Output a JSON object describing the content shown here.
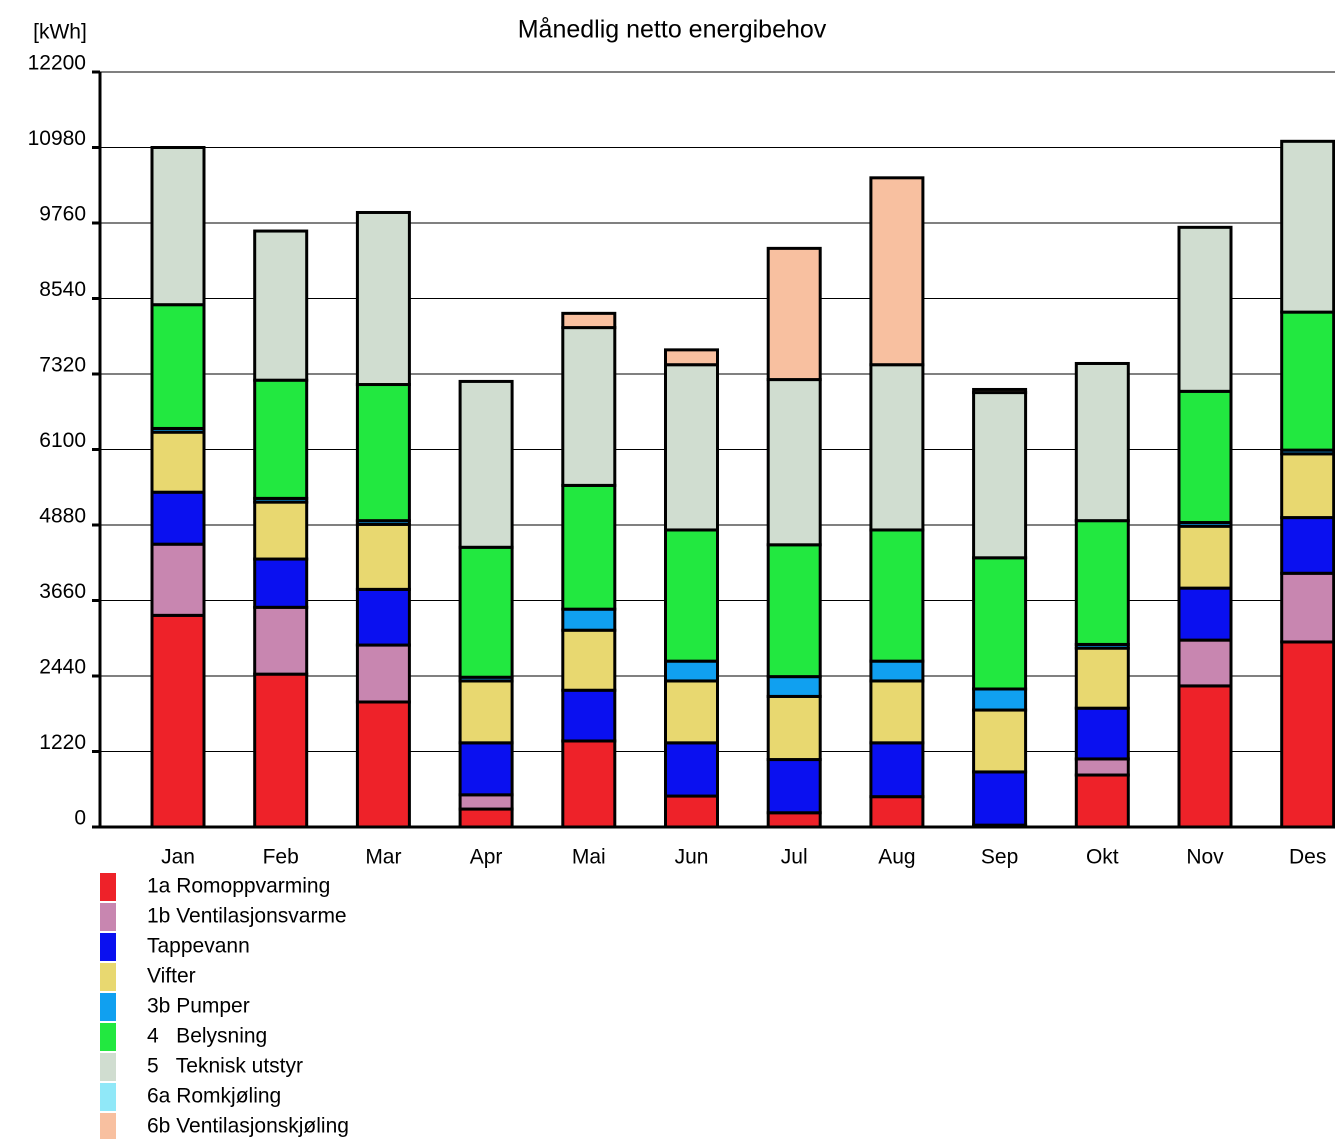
{
  "chart_data": {
    "type": "bar",
    "stacked": true,
    "title": "Månedlig netto energibehov",
    "y_label": "[kWh]",
    "categories": [
      "Jan",
      "Feb",
      "Mar",
      "Apr",
      "Mai",
      "Jun",
      "Jul",
      "Aug",
      "Sep",
      "Okt",
      "Nov",
      "Des"
    ],
    "ylim": [
      0,
      12200
    ],
    "yticks": [
      0,
      1220,
      2440,
      3660,
      4880,
      6100,
      7320,
      8540,
      9760,
      10980,
      12200
    ],
    "grid": true,
    "series": [
      {
        "name": "1a Romoppvarming",
        "color": "#ee2229",
        "values": [
          3420,
          2470,
          2020,
          290,
          1390,
          500,
          230,
          490,
          30,
          840,
          2280,
          2990
        ]
      },
      {
        "name": "1b Ventilasjonsvarme",
        "color": "#c886b0",
        "values": [
          1150,
          1080,
          920,
          230,
          0,
          0,
          0,
          0,
          0,
          260,
          740,
          1110
        ]
      },
      {
        "name": "Tappevann",
        "color": "#0a10f0",
        "values": [
          840,
          780,
          900,
          840,
          820,
          860,
          860,
          870,
          860,
          820,
          840,
          900
        ]
      },
      {
        "name": "Vifter",
        "color": "#e8d870",
        "values": [
          970,
          920,
          1050,
          1000,
          970,
          1000,
          1020,
          1000,
          1000,
          970,
          1000,
          1030
        ]
      },
      {
        "name": "3b Pumper",
        "color": "#10a0f0",
        "values": [
          60,
          60,
          60,
          60,
          340,
          320,
          320,
          320,
          340,
          60,
          60,
          60
        ]
      },
      {
        "name": "4   Belysning",
        "color": "#22e840",
        "values": [
          2000,
          1910,
          2200,
          2100,
          2000,
          2120,
          2130,
          2120,
          2120,
          2000,
          2120,
          2230
        ]
      },
      {
        "name": "5   Teknisk utstyr",
        "color": "#d0ddd0",
        "values": [
          2540,
          2410,
          2780,
          2680,
          2550,
          2670,
          2670,
          2670,
          2670,
          2540,
          2650,
          2760
        ]
      },
      {
        "name": "6a Romkjøling",
        "color": "#90e8f8",
        "values": [
          0,
          0,
          0,
          0,
          0,
          0,
          0,
          0,
          0,
          0,
          0,
          0
        ]
      },
      {
        "name": "6b Ventilasjonskjøling",
        "color": "#f8c0a0",
        "values": [
          0,
          0,
          0,
          0,
          230,
          240,
          2120,
          3020,
          50,
          0,
          0,
          0
        ]
      }
    ]
  }
}
